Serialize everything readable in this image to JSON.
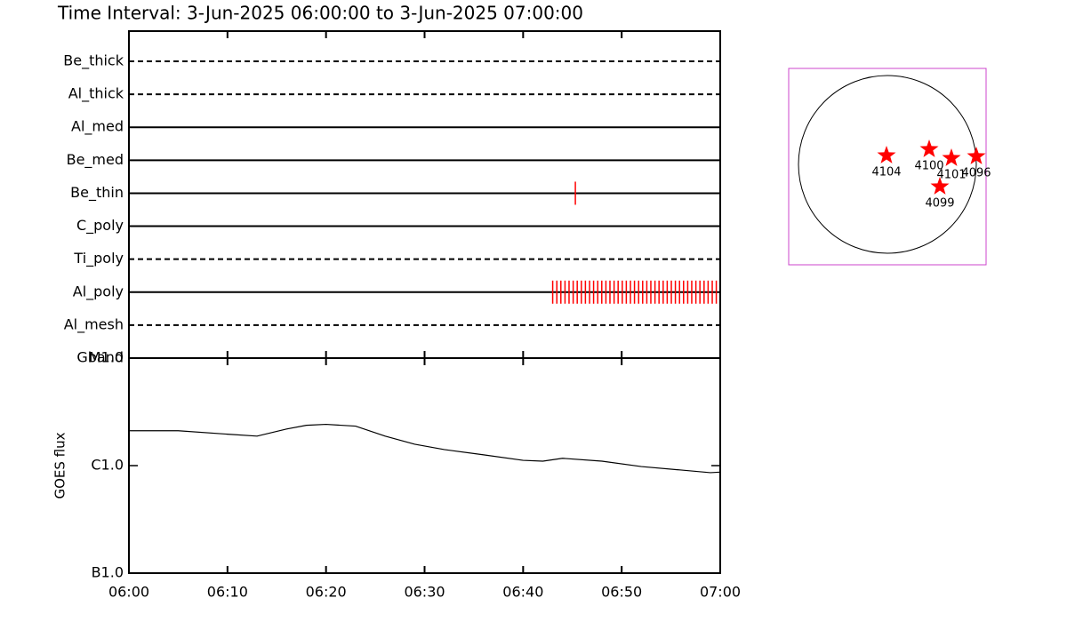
{
  "chart_data": [
    {
      "type": "timeline",
      "title": "Time Interval:  3-Jun-2025 06:00:00 to  3-Jun-2025 07:00:00",
      "color": "#ff0000",
      "xlim": [
        0,
        60
      ],
      "xticks": [
        {
          "value": 0,
          "label": "06:00"
        },
        {
          "value": 10,
          "label": "06:10"
        },
        {
          "value": 20,
          "label": "06:20"
        },
        {
          "value": 30,
          "label": "06:30"
        },
        {
          "value": 40,
          "label": "06:40"
        },
        {
          "value": 50,
          "label": "06:50"
        },
        {
          "value": 60,
          "label": "07:00"
        }
      ],
      "series": [
        {
          "name": "Be_thick",
          "dashed": true,
          "events": []
        },
        {
          "name": "Al_thick",
          "dashed": true,
          "events": []
        },
        {
          "name": "Al_med",
          "dashed": false,
          "events": []
        },
        {
          "name": "Be_med",
          "dashed": false,
          "events": []
        },
        {
          "name": "Be_thin",
          "dashed": false,
          "events": [
            45.3
          ]
        },
        {
          "name": "C_poly",
          "dashed": false,
          "events": []
        },
        {
          "name": "Ti_poly",
          "dashed": true,
          "events": []
        },
        {
          "name": "Al_poly",
          "dashed": false,
          "events": [
            43.0,
            43.42,
            43.83,
            44.25,
            44.66,
            45.08,
            45.49,
            45.91,
            46.32,
            46.74,
            47.15,
            47.57,
            47.98,
            48.4,
            48.81,
            49.23,
            49.64,
            50.06,
            50.47,
            50.89,
            51.3,
            51.72,
            52.13,
            52.55,
            52.96,
            53.38,
            53.79,
            54.21,
            54.62,
            55.04,
            55.45,
            55.87,
            56.28,
            56.7,
            57.11,
            57.53,
            57.94,
            58.36,
            58.77,
            59.19,
            59.6
          ]
        },
        {
          "name": "Al_mesh",
          "dashed": true,
          "events": []
        },
        {
          "name": "Gband",
          "dashed": true,
          "events": []
        }
      ]
    },
    {
      "type": "line",
      "ylabel": "GOES flux",
      "log_scale": true,
      "color": "#000000",
      "xlim": [
        0,
        60
      ],
      "xticks": [
        {
          "value": 0,
          "label": "06:00"
        },
        {
          "value": 10,
          "label": "06:10"
        },
        {
          "value": 20,
          "label": "06:20"
        },
        {
          "value": 30,
          "label": "06:30"
        },
        {
          "value": 40,
          "label": "06:40"
        },
        {
          "value": 50,
          "label": "06:50"
        },
        {
          "value": 60,
          "label": "07:00"
        }
      ],
      "ylim": [
        1e-07,
        1e-05
      ],
      "yticks": [
        {
          "value": 1e-07,
          "label": "B1.0"
        },
        {
          "value": 1e-06,
          "label": "C1.0"
        },
        {
          "value": 1e-05,
          "label": "M1.0"
        }
      ],
      "x": [
        0,
        5,
        10,
        13,
        16,
        18,
        20,
        23,
        26,
        29,
        32,
        36,
        40,
        42,
        44,
        48,
        52,
        56,
        59,
        60
      ],
      "values": [
        2.11e-06,
        2.11e-06,
        1.96e-06,
        1.88e-06,
        2.19e-06,
        2.37e-06,
        2.42e-06,
        2.33e-06,
        1.88e-06,
        1.58e-06,
        1.41e-06,
        1.26e-06,
        1.12e-06,
        1.1e-06,
        1.17e-06,
        1.1e-06,
        9.8e-07,
        9.1e-07,
        8.6e-07,
        8.7e-07
      ]
    },
    {
      "type": "scatter",
      "color": "#ff0000",
      "frame_color": "#cc44cc",
      "xlim": [
        -1.11,
        1.11
      ],
      "ylim": [
        -1.13,
        1.08
      ],
      "points": [
        {
          "label": "4104",
          "x": -0.01,
          "y": 0.1
        },
        {
          "label": "4100",
          "x": 0.47,
          "y": 0.17
        },
        {
          "label": "4101",
          "x": 0.72,
          "y": 0.07
        },
        {
          "label": "4096",
          "x": 1.0,
          "y": 0.09
        },
        {
          "label": "4099",
          "x": 0.59,
          "y": -0.25
        }
      ]
    }
  ]
}
